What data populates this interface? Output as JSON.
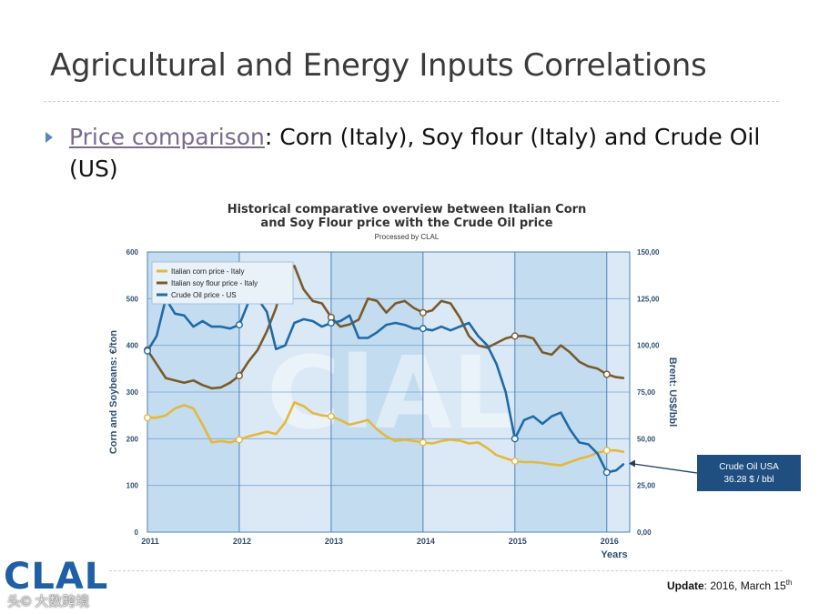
{
  "slide": {
    "title": "Agricultural and Energy Inputs Correlations",
    "bullet_link": "Price comparison",
    "bullet_rest": ": Corn (Italy), Soy flour (Italy) and Crude Oil (US)",
    "update_label": "Update",
    "update_text": ": 2016, March 15",
    "update_sup": "th",
    "logo_text": "CLAL",
    "watermark_text": "头© 大数跨境"
  },
  "chart_data": {
    "type": "line",
    "title": "Historical comparative overview between Italian Corn and Soy Flour price with the Crude Oil price",
    "title_lines": [
      "Historical comparative overview between Italian Corn",
      "and Soy Flour price with the Crude Oil price"
    ],
    "subtitle": "Processed by CLAL",
    "background_watermark": "ClAL",
    "xlabel": "Years",
    "ylabel": "Corn and Soybeans: €/ton",
    "y2label": "Brent: US$/bbl",
    "xlim": [
      2011,
      2016.25
    ],
    "ylim": [
      0,
      600
    ],
    "y2lim": [
      0,
      150
    ],
    "x_ticks": [
      "2011",
      "2012",
      "2013",
      "2014",
      "2015",
      "2016"
    ],
    "y_ticks": [
      "0",
      "100",
      "200",
      "300",
      "400",
      "500",
      "600"
    ],
    "y2_ticks": [
      "0,00",
      "25,00",
      "50,00",
      "75,00",
      "100,00",
      "125,00",
      "150,00"
    ],
    "grid": true,
    "legend_position": "top-left",
    "colors": {
      "corn": "#e3b93b",
      "soy": "#7a5a2a",
      "oil": "#1f6aa8",
      "plot_bg": "#c4dcf0",
      "plot_bg_alt": "#dbe9f6"
    },
    "series": [
      {
        "name": "Italian corn price - Italy",
        "axis": "left",
        "x": [
          2011,
          2011.1,
          2011.2,
          2011.3,
          2011.4,
          2011.5,
          2011.6,
          2011.7,
          2011.8,
          2011.9,
          2012,
          2012.1,
          2012.2,
          2012.3,
          2012.4,
          2012.5,
          2012.6,
          2012.7,
          2012.8,
          2012.9,
          2013,
          2013.1,
          2013.2,
          2013.3,
          2013.4,
          2013.5,
          2013.6,
          2013.7,
          2013.8,
          2013.9,
          2014,
          2014.1,
          2014.2,
          2014.3,
          2014.4,
          2014.5,
          2014.6,
          2014.7,
          2014.8,
          2014.9,
          2015,
          2015.1,
          2015.2,
          2015.3,
          2015.4,
          2015.5,
          2015.6,
          2015.7,
          2015.8,
          2015.9,
          2016,
          2016.1,
          2016.18
        ],
        "values": [
          245,
          245,
          250,
          265,
          272,
          265,
          230,
          192,
          195,
          192,
          198,
          205,
          210,
          215,
          210,
          235,
          278,
          270,
          255,
          250,
          248,
          240,
          230,
          235,
          240,
          220,
          205,
          195,
          198,
          195,
          192,
          190,
          195,
          198,
          196,
          190,
          192,
          180,
          165,
          158,
          152,
          150,
          150,
          148,
          145,
          143,
          150,
          157,
          162,
          170,
          175,
          175,
          172
        ]
      },
      {
        "name": "Italian soy flour price - Italy",
        "axis": "left",
        "x": [
          2011,
          2011.1,
          2011.2,
          2011.3,
          2011.4,
          2011.5,
          2011.6,
          2011.7,
          2011.8,
          2011.9,
          2012,
          2012.1,
          2012.2,
          2012.3,
          2012.4,
          2012.5,
          2012.6,
          2012.7,
          2012.8,
          2012.9,
          2013,
          2013.1,
          2013.2,
          2013.3,
          2013.4,
          2013.5,
          2013.6,
          2013.7,
          2013.8,
          2013.9,
          2014,
          2014.1,
          2014.2,
          2014.3,
          2014.4,
          2014.5,
          2014.6,
          2014.7,
          2014.8,
          2014.9,
          2015,
          2015.1,
          2015.2,
          2015.3,
          2015.4,
          2015.5,
          2015.6,
          2015.7,
          2015.8,
          2015.9,
          2016,
          2016.1,
          2016.18
        ],
        "values": [
          390,
          360,
          330,
          325,
          320,
          325,
          315,
          308,
          310,
          320,
          335,
          365,
          390,
          430,
          480,
          555,
          570,
          520,
          495,
          490,
          460,
          440,
          445,
          455,
          500,
          495,
          470,
          490,
          495,
          480,
          470,
          475,
          495,
          490,
          460,
          420,
          400,
          395,
          405,
          415,
          420,
          420,
          415,
          385,
          380,
          400,
          385,
          365,
          355,
          350,
          338,
          332,
          330
        ]
      },
      {
        "name": "Crude Oil price - US",
        "axis": "right",
        "x": [
          2011,
          2011.1,
          2011.2,
          2011.3,
          2011.4,
          2011.5,
          2011.6,
          2011.7,
          2011.8,
          2011.9,
          2012,
          2012.1,
          2012.2,
          2012.3,
          2012.4,
          2012.5,
          2012.6,
          2012.7,
          2012.8,
          2012.9,
          2013,
          2013.1,
          2013.2,
          2013.3,
          2013.4,
          2013.5,
          2013.6,
          2013.7,
          2013.8,
          2013.9,
          2014,
          2014.1,
          2014.2,
          2014.3,
          2014.4,
          2014.5,
          2014.6,
          2014.7,
          2014.8,
          2014.9,
          2015,
          2015.1,
          2015.2,
          2015.3,
          2015.4,
          2015.5,
          2015.6,
          2015.7,
          2015.8,
          2015.9,
          2016,
          2016.1,
          2016.18
        ],
        "values": [
          97,
          105,
          125,
          117,
          116,
          110,
          113,
          110,
          110,
          109,
          111,
          123,
          125,
          118,
          98,
          100,
          112,
          114,
          113,
          110,
          112,
          113,
          116,
          104,
          104,
          107,
          111,
          112,
          111,
          109,
          109,
          108,
          110,
          108,
          110,
          112,
          105,
          100,
          90,
          75,
          50,
          60,
          62,
          58,
          62,
          64,
          55,
          48,
          47,
          42,
          32,
          33,
          36.28
        ]
      }
    ],
    "annotation": {
      "line1": "Crude Oil USA",
      "line2": "36.28 $ / bbl",
      "x": 2016.18,
      "value": 36.28,
      "axis": "right"
    }
  }
}
